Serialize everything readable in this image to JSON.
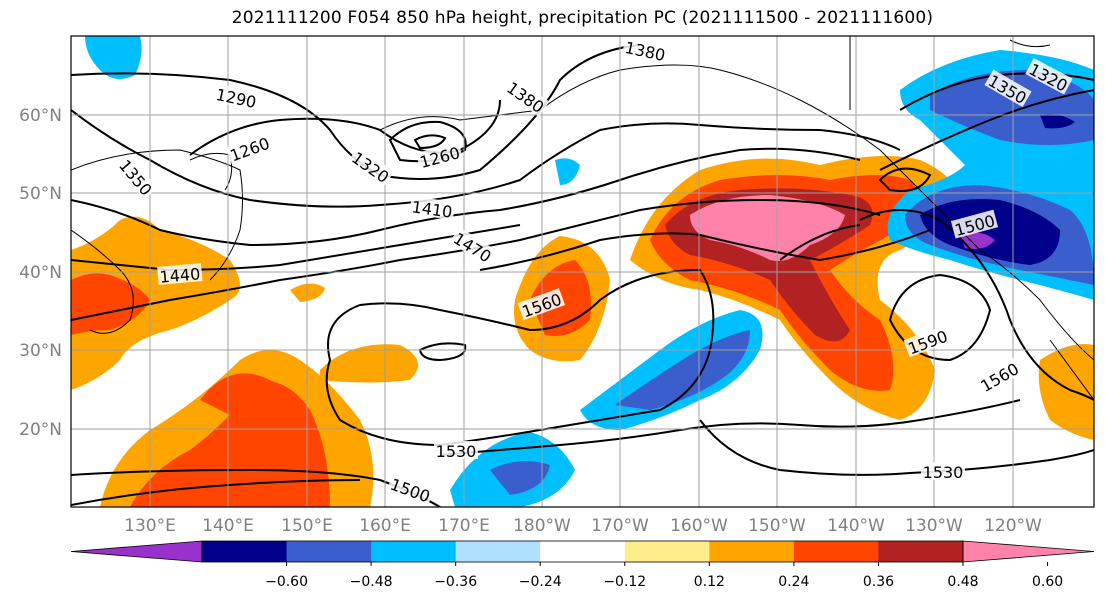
{
  "title": "2021111200 F054 850 hPa height, precipitation PC (2021111500 - 2021111600)",
  "lat_labels": [
    "60°N",
    "50°N",
    "40°N",
    "30°N",
    "20°N"
  ],
  "lon_labels": [
    "130°E",
    "140°E",
    "150°E",
    "160°E",
    "170°E",
    "180°W",
    "170°W",
    "160°W",
    "150°W",
    "140°W",
    "130°W",
    "120°W"
  ],
  "colorbar": {
    "ticks": [
      "−0.60",
      "−0.48",
      "−0.36",
      "−0.24",
      "−0.12",
      "0.12",
      "0.24",
      "0.36",
      "0.48",
      "0.60"
    ],
    "colors": [
      "#9932cc",
      "#00008b",
      "#3a5fcd",
      "#00bfff",
      "#b0e2ff",
      "#ffffff",
      "#ffec8b",
      "#ffa500",
      "#ff4500",
      "#b22222",
      "#ff82ab"
    ]
  },
  "contour_labels": [
    "1380",
    "1320",
    "1290",
    "1260",
    "1350",
    "1320",
    "1260",
    "1380",
    "1410",
    "1470",
    "1440",
    "1350",
    "1500",
    "1560",
    "1590",
    "1560",
    "1530",
    "1530",
    "1500"
  ],
  "colors": {
    "contour": "#000000",
    "grid": "#a0a0a0",
    "coast": "#000000"
  }
}
